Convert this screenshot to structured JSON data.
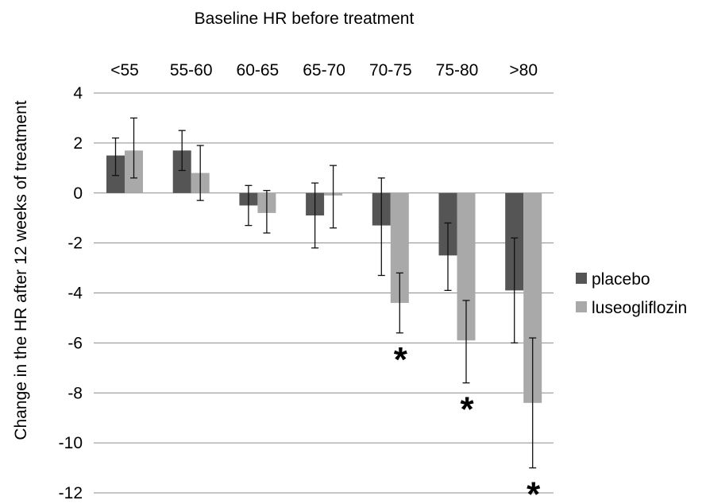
{
  "chart_data": {
    "type": "bar",
    "title": "Baseline HR before treatment",
    "ylabel": "Change in the HR after 12 weeks of treatment",
    "xlabel": "",
    "categories": [
      "<55",
      "55-60",
      "60-65",
      "65-70",
      "70-75",
      "75-80",
      ">80"
    ],
    "ylim": [
      -12,
      4
    ],
    "yticks": [
      4,
      2,
      0,
      -2,
      -4,
      -6,
      -8,
      -10,
      -12
    ],
    "grid": true,
    "legend_position": "right",
    "category_labels_position": "top",
    "series": [
      {
        "name": "placebo",
        "color": "#555555",
        "values": [
          1.5,
          1.7,
          -0.5,
          -0.9,
          -1.3,
          -2.5,
          -3.9
        ],
        "error_low": [
          0.7,
          0.9,
          -1.3,
          -2.2,
          -3.3,
          -3.9,
          -6.0
        ],
        "error_high": [
          2.2,
          2.5,
          0.3,
          0.4,
          0.6,
          -1.2,
          -1.8
        ]
      },
      {
        "name": "luseogliflozin",
        "color": "#a9a9a9",
        "values": [
          1.7,
          0.8,
          -0.8,
          -0.1,
          -4.4,
          -5.9,
          -8.4
        ],
        "error_low": [
          0.6,
          -0.3,
          -1.6,
          -1.4,
          -5.6,
          -7.6,
          -11.0
        ],
        "error_high": [
          3.0,
          1.9,
          0.1,
          1.1,
          -3.2,
          -4.3,
          -5.8
        ]
      }
    ],
    "annotations": [
      {
        "text": "*",
        "category": "70-75",
        "series": "luseogliflozin"
      },
      {
        "text": "*",
        "category": "75-80",
        "series": "luseogliflozin"
      },
      {
        "text": "*",
        "category": ">80",
        "series": "luseogliflozin"
      }
    ]
  }
}
